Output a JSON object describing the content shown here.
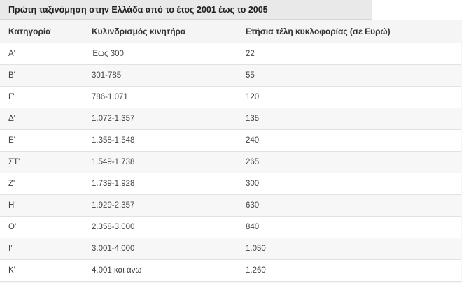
{
  "title": "Πρώτη ταξινόμηση στην Ελλάδα από το έτος 2001 έως το 2005",
  "table": {
    "headers": [
      "Κατηγορία",
      "Κυλινδρισμός κινητήρα",
      "Ετήσια τέλη κυκλοφορίας (σε Ευρώ)"
    ],
    "rows": [
      [
        "Α'",
        "Έως 300",
        "22"
      ],
      [
        "Β'",
        "301-785",
        "55"
      ],
      [
        "Γ'",
        "786-1.071",
        "120"
      ],
      [
        "Δ'",
        "1.072-1.357",
        "135"
      ],
      [
        "Ε'",
        "1.358-1.548",
        "240"
      ],
      [
        "ΣΤ'",
        "1.549-1.738",
        "265"
      ],
      [
        "Ζ'",
        "1.739-1.928",
        "300"
      ],
      [
        "Η'",
        "1.929-2.357",
        "630"
      ],
      [
        "Θ'",
        "2.358-3.000",
        "840"
      ],
      [
        "Ι'",
        "3.001-4.000",
        "1.050"
      ],
      [
        "Κ'",
        "4.001 και άνω",
        "1.260"
      ]
    ]
  }
}
